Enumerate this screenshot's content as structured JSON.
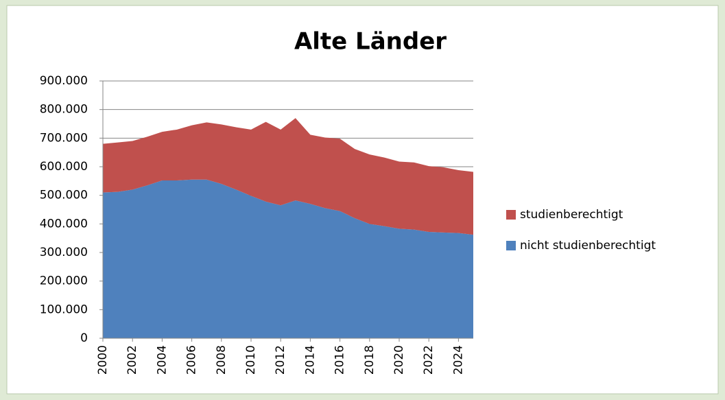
{
  "chart_data": {
    "type": "stacked-area",
    "title": "Alte Länder",
    "x": [
      2000,
      2001,
      2002,
      2003,
      2004,
      2005,
      2006,
      2007,
      2008,
      2009,
      2010,
      2011,
      2012,
      2013,
      2014,
      2015,
      2016,
      2017,
      2018,
      2019,
      2020,
      2021,
      2022,
      2023,
      2024,
      2025
    ],
    "series": [
      {
        "name": "nicht studienberechtigt",
        "color": "#4f81bd",
        "values": [
          510000,
          512000,
          520000,
          535000,
          552000,
          552000,
          555000,
          555000,
          540000,
          520000,
          498000,
          478000,
          465000,
          482000,
          470000,
          455000,
          445000,
          420000,
          400000,
          392000,
          383000,
          380000,
          372000,
          370000,
          368000,
          362000
        ]
      },
      {
        "name": "studienberechtigt",
        "color": "#c0504d",
        "values": [
          170000,
          173000,
          170000,
          170000,
          170000,
          178000,
          190000,
          200000,
          208000,
          218000,
          232000,
          279000,
          265000,
          288000,
          242000,
          247000,
          253000,
          242000,
          243000,
          240000,
          235000,
          235000,
          230000,
          228000,
          220000,
          220000
        ]
      }
    ],
    "xlim": [
      2000,
      2025
    ],
    "xticks": [
      2000,
      2002,
      2004,
      2006,
      2008,
      2010,
      2012,
      2014,
      2016,
      2018,
      2020,
      2022,
      2024
    ],
    "ylim": [
      0,
      900000
    ],
    "yticks": [
      0,
      {
        "value": 100000,
        "label": "100.000"
      },
      {
        "value": 200000,
        "label": "200.000"
      },
      {
        "value": 300000,
        "label": "300.000"
      },
      {
        "value": 400000,
        "label": "400.000"
      },
      {
        "value": 500000,
        "label": "500.000"
      },
      {
        "value": 600000,
        "label": "600.000"
      },
      {
        "value": 700000,
        "label": "700.000"
      },
      {
        "value": 800000,
        "label": "800.000"
      },
      {
        "value": 900000,
        "label": "900.000"
      }
    ],
    "grid": true,
    "legend": "right"
  }
}
